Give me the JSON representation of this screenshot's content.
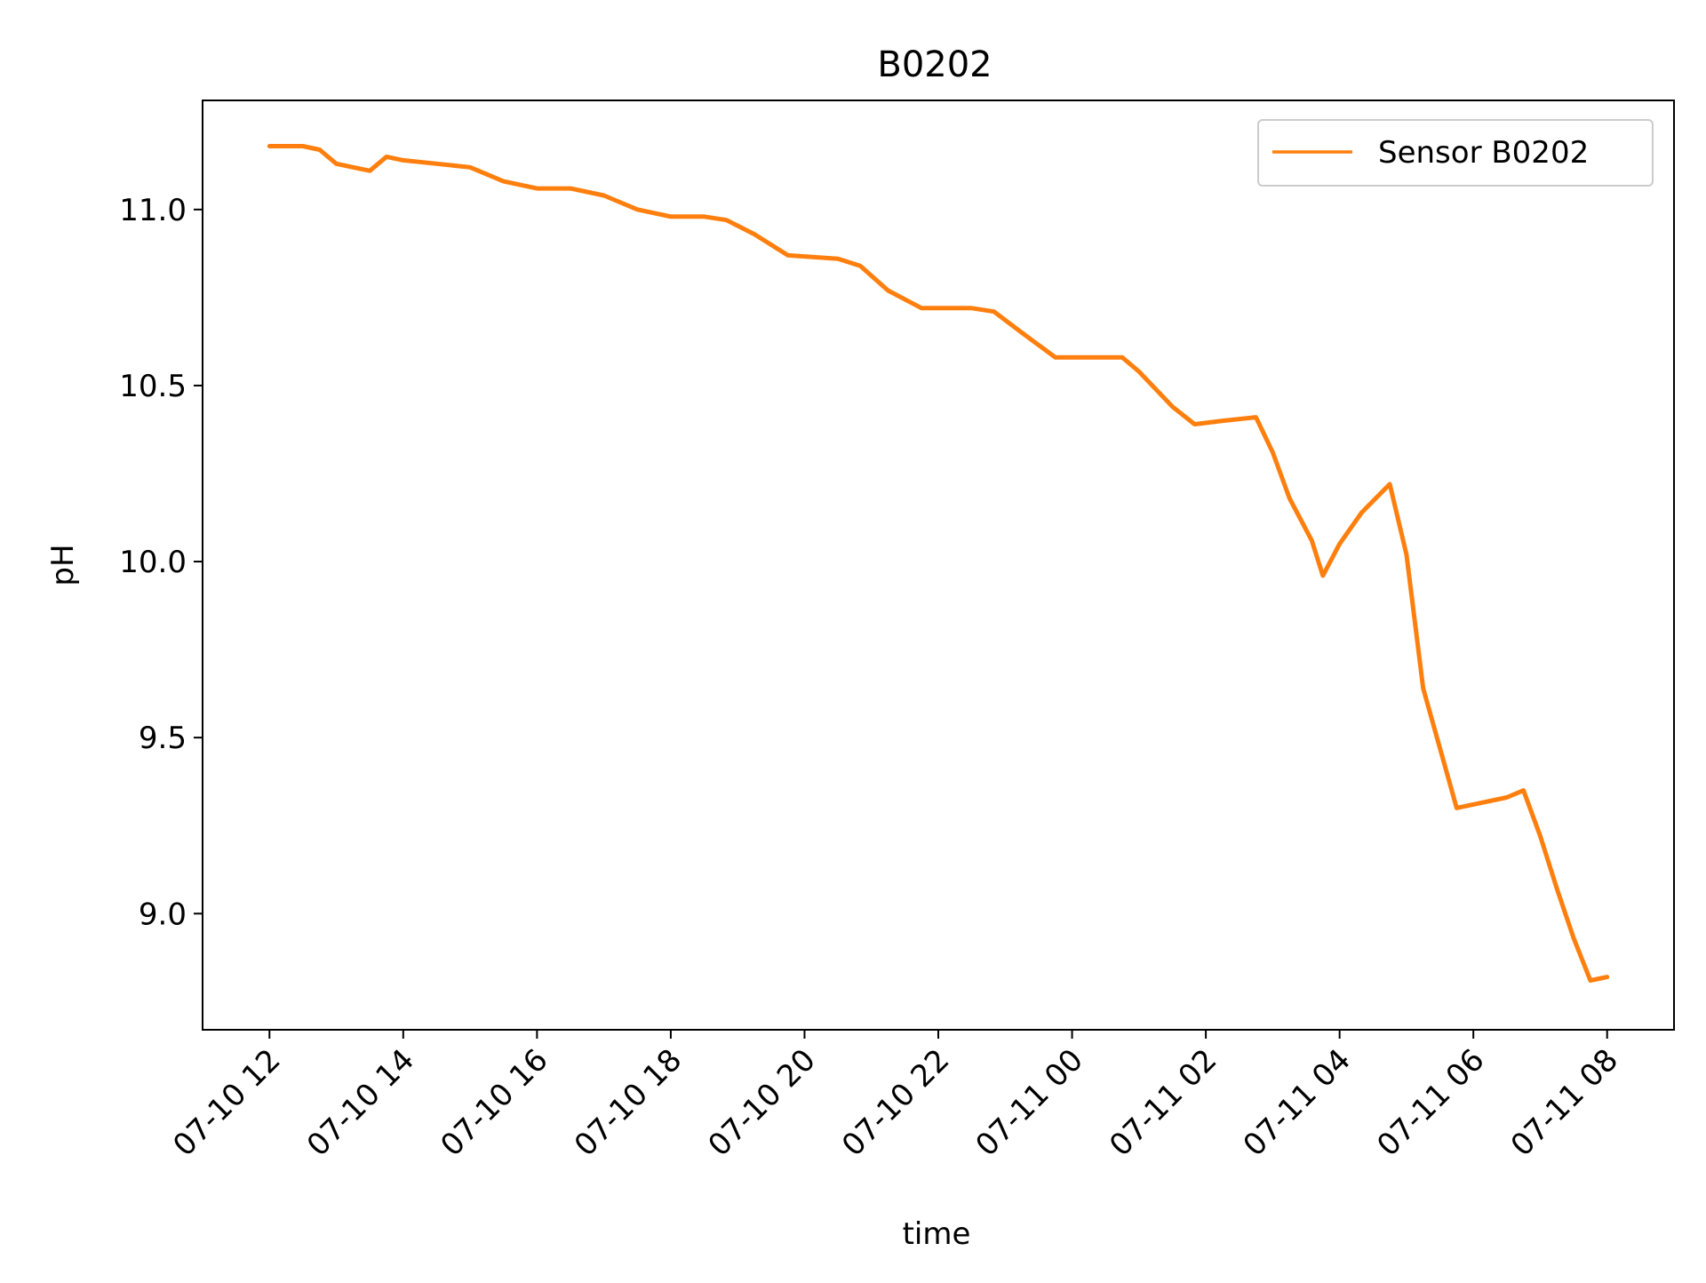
{
  "chart_data": {
    "type": "line",
    "title": "B0202",
    "xlabel": "time",
    "ylabel": "pH",
    "x_ticks": [
      "07-10 12",
      "07-10 14",
      "07-10 16",
      "07-10 18",
      "07-10 20",
      "07-10 22",
      "07-11 00",
      "07-11 02",
      "07-11 04",
      "07-11 06",
      "07-11 08"
    ],
    "x_tick_times": [
      "2023-07-10 12:00",
      "2023-07-10 14:00",
      "2023-07-10 16:00",
      "2023-07-10 18:00",
      "2023-07-10 20:00",
      "2023-07-10 22:00",
      "2023-07-11 00:00",
      "2023-07-11 02:00",
      "2023-07-11 04:00",
      "2023-07-11 06:00",
      "2023-07-11 08:00"
    ],
    "y_ticks": [
      9.0,
      9.5,
      10.0,
      10.5,
      11.0
    ],
    "y_tick_labels": [
      "9.0",
      "9.5",
      "10.0",
      "10.5",
      "11.0"
    ],
    "xlim": [
      "2023-07-10 11:00",
      "2023-07-11 09:00"
    ],
    "ylim": [
      8.67,
      11.31
    ],
    "grid": false,
    "legend_position": "top-right",
    "series": [
      {
        "name": "Sensor B0202",
        "color": "#ff7f0e",
        "x": [
          "2023-07-10 12:00",
          "2023-07-10 12:30",
          "2023-07-10 12:45",
          "2023-07-10 13:00",
          "2023-07-10 13:15",
          "2023-07-10 13:30",
          "2023-07-10 13:45",
          "2023-07-10 14:00",
          "2023-07-10 14:30",
          "2023-07-10 15:00",
          "2023-07-10 15:30",
          "2023-07-10 16:00",
          "2023-07-10 16:30",
          "2023-07-10 16:45",
          "2023-07-10 17:00",
          "2023-07-10 17:30",
          "2023-07-10 18:00",
          "2023-07-10 18:30",
          "2023-07-10 18:50",
          "2023-07-10 19:15",
          "2023-07-10 19:45",
          "2023-07-10 20:30",
          "2023-07-10 20:50",
          "2023-07-10 21:15",
          "2023-07-10 21:45",
          "2023-07-10 22:00",
          "2023-07-10 22:30",
          "2023-07-10 22:50",
          "2023-07-10 23:15",
          "2023-07-10 23:45",
          "2023-07-11 00:00",
          "2023-07-11 00:45",
          "2023-07-11 01:00",
          "2023-07-11 01:30",
          "2023-07-11 01:50",
          "2023-07-11 02:15",
          "2023-07-11 02:45",
          "2023-07-11 03:00",
          "2023-07-11 03:15",
          "2023-07-11 03:35",
          "2023-07-11 03:45",
          "2023-07-11 04:00",
          "2023-07-11 04:20",
          "2023-07-11 04:45",
          "2023-07-11 05:00",
          "2023-07-11 05:15",
          "2023-07-11 05:45",
          "2023-07-11 06:00",
          "2023-07-11 06:30",
          "2023-07-11 06:45",
          "2023-07-11 07:00",
          "2023-07-11 07:15",
          "2023-07-11 07:30",
          "2023-07-11 07:45",
          "2023-07-11 08:00"
        ],
        "y": [
          11.18,
          11.18,
          11.17,
          11.13,
          11.12,
          11.11,
          11.15,
          11.14,
          11.13,
          11.12,
          11.08,
          11.06,
          11.06,
          11.05,
          11.04,
          11.0,
          10.98,
          10.98,
          10.97,
          10.93,
          10.87,
          10.86,
          10.84,
          10.77,
          10.72,
          10.72,
          10.72,
          10.71,
          10.65,
          10.58,
          10.58,
          10.58,
          10.54,
          10.44,
          10.39,
          10.4,
          10.41,
          10.31,
          10.18,
          10.06,
          9.96,
          10.05,
          10.14,
          10.22,
          10.02,
          9.64,
          9.3,
          9.31,
          9.33,
          9.35,
          9.22,
          9.07,
          8.93,
          8.81,
          8.82
        ]
      }
    ]
  }
}
